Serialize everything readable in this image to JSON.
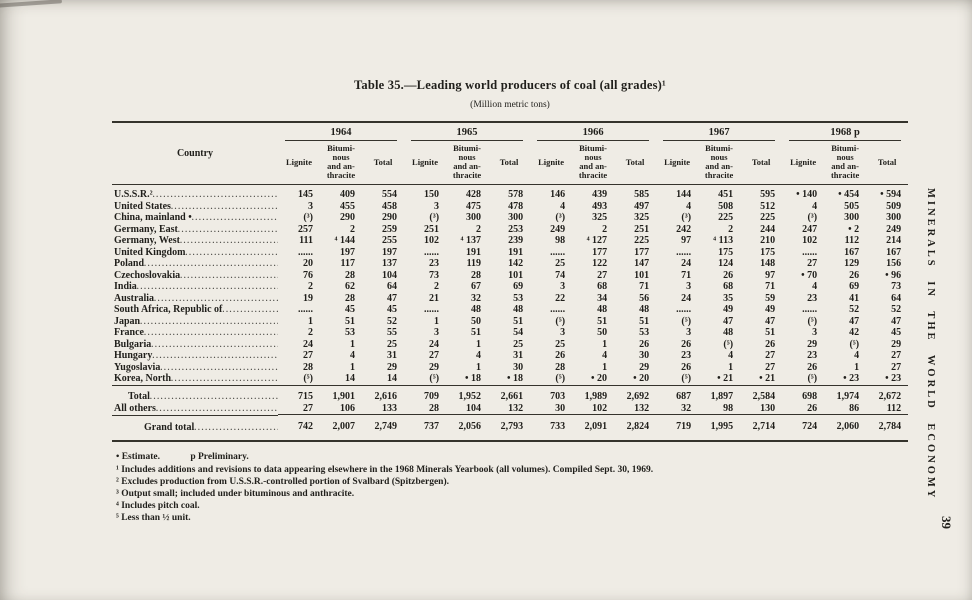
{
  "page": {
    "side_text": "MINERALS IN THE WORLD ECONOMY",
    "page_number": "39"
  },
  "table": {
    "title": "Table 35.—Leading world producers of coal (all grades)¹",
    "subtitle": "(Million metric tons)",
    "country_header": "Country",
    "years": [
      "1964",
      "1965",
      "1966",
      "1967",
      "1968 p"
    ],
    "sub_headers": [
      "Lignite",
      "Bitumi-\nnous\nand an-\nthracite",
      "Total"
    ],
    "rows": [
      {
        "country": "U.S.S.R.²",
        "values": [
          "145",
          "409",
          "554",
          "150",
          "428",
          "578",
          "146",
          "439",
          "585",
          "144",
          "451",
          "595",
          "• 140",
          "• 454",
          "• 594"
        ]
      },
      {
        "country": "United States",
        "values": [
          "3",
          "455",
          "458",
          "3",
          "475",
          "478",
          "4",
          "493",
          "497",
          "4",
          "508",
          "512",
          "4",
          "505",
          "509"
        ]
      },
      {
        "country": "China, mainland •",
        "values": [
          "(³)",
          "290",
          "290",
          "(³)",
          "300",
          "300",
          "(³)",
          "325",
          "325",
          "(³)",
          "225",
          "225",
          "(³)",
          "300",
          "300"
        ]
      },
      {
        "country": "Germany, East",
        "values": [
          "257",
          "2",
          "259",
          "251",
          "2",
          "253",
          "249",
          "2",
          "251",
          "242",
          "2",
          "244",
          "247",
          "• 2",
          "249"
        ]
      },
      {
        "country": "Germany, West",
        "values": [
          "111",
          "⁴ 144",
          "255",
          "102",
          "⁴ 137",
          "239",
          "98",
          "⁴ 127",
          "225",
          "97",
          "⁴ 113",
          "210",
          "102",
          "112",
          "214"
        ]
      },
      {
        "country": "United Kingdom",
        "values": [
          "......",
          "197",
          "197",
          "......",
          "191",
          "191",
          "......",
          "177",
          "177",
          "......",
          "175",
          "175",
          "......",
          "167",
          "167"
        ]
      },
      {
        "country": "Poland",
        "values": [
          "20",
          "117",
          "137",
          "23",
          "119",
          "142",
          "25",
          "122",
          "147",
          "24",
          "124",
          "148",
          "27",
          "129",
          "156"
        ]
      },
      {
        "country": "Czechoslovakia",
        "values": [
          "76",
          "28",
          "104",
          "73",
          "28",
          "101",
          "74",
          "27",
          "101",
          "71",
          "26",
          "97",
          "• 70",
          "26",
          "• 96"
        ]
      },
      {
        "country": "India",
        "values": [
          "2",
          "62",
          "64",
          "2",
          "67",
          "69",
          "3",
          "68",
          "71",
          "3",
          "68",
          "71",
          "4",
          "69",
          "73"
        ]
      },
      {
        "country": "Australia",
        "values": [
          "19",
          "28",
          "47",
          "21",
          "32",
          "53",
          "22",
          "34",
          "56",
          "24",
          "35",
          "59",
          "23",
          "41",
          "64"
        ]
      },
      {
        "country": "South Africa, Republic of",
        "values": [
          "......",
          "45",
          "45",
          "......",
          "48",
          "48",
          "......",
          "48",
          "48",
          "......",
          "49",
          "49",
          "......",
          "52",
          "52"
        ]
      },
      {
        "country": "Japan",
        "values": [
          "1",
          "51",
          "52",
          "1",
          "50",
          "51",
          "(⁵)",
          "51",
          "51",
          "(⁵)",
          "47",
          "47",
          "(⁵)",
          "47",
          "47"
        ]
      },
      {
        "country": "France",
        "values": [
          "2",
          "53",
          "55",
          "3",
          "51",
          "54",
          "3",
          "50",
          "53",
          "3",
          "48",
          "51",
          "3",
          "42",
          "45"
        ]
      },
      {
        "country": "Bulgaria",
        "values": [
          "24",
          "1",
          "25",
          "24",
          "1",
          "25",
          "25",
          "1",
          "26",
          "26",
          "(⁵)",
          "26",
          "29",
          "(⁵)",
          "29"
        ]
      },
      {
        "country": "Hungary",
        "values": [
          "27",
          "4",
          "31",
          "27",
          "4",
          "31",
          "26",
          "4",
          "30",
          "23",
          "4",
          "27",
          "23",
          "4",
          "27"
        ]
      },
      {
        "country": "Yugoslavia",
        "values": [
          "28",
          "1",
          "29",
          "29",
          "1",
          "30",
          "28",
          "1",
          "29",
          "26",
          "1",
          "27",
          "26",
          "1",
          "27"
        ]
      },
      {
        "country": "Korea, North",
        "values": [
          "(⁵)",
          "14",
          "14",
          "(⁵)",
          "• 18",
          "• 18",
          "(⁵)",
          "• 20",
          "• 20",
          "(⁵)",
          "• 21",
          "• 21",
          "(⁵)",
          "• 23",
          "• 23"
        ]
      }
    ],
    "summary_rows": [
      {
        "label": "Total",
        "style": "total",
        "values": [
          "715",
          "1,901",
          "2,616",
          "709",
          "1,952",
          "2,661",
          "703",
          "1,989",
          "2,692",
          "687",
          "1,897",
          "2,584",
          "698",
          "1,974",
          "2,672"
        ]
      },
      {
        "label": "All others",
        "style": "allothers",
        "values": [
          "27",
          "106",
          "133",
          "28",
          "104",
          "132",
          "30",
          "102",
          "132",
          "32",
          "98",
          "130",
          "26",
          "86",
          "112"
        ]
      },
      {
        "label": "Grand total",
        "style": "grand",
        "values": [
          "742",
          "2,007",
          "2,749",
          "737",
          "2,056",
          "2,793",
          "733",
          "2,091",
          "2,824",
          "719",
          "1,995",
          "2,714",
          "724",
          "2,060",
          "2,784"
        ]
      }
    ]
  },
  "footnotes": {
    "legend_estimate": "• Estimate.",
    "legend_preliminary": "p Preliminary.",
    "notes": [
      "¹ Includes additions and revisions to data appearing elsewhere in the 1968 Minerals Yearbook (all volumes). Compiled Sept. 30, 1969.",
      "² Excludes production from U.S.S.R.-controlled portion of Svalbard (Spitzbergen).",
      "³ Output small; included under bituminous and anthracite.",
      "⁴ Includes pitch coal.",
      "⁵ Less than ½ unit."
    ]
  }
}
